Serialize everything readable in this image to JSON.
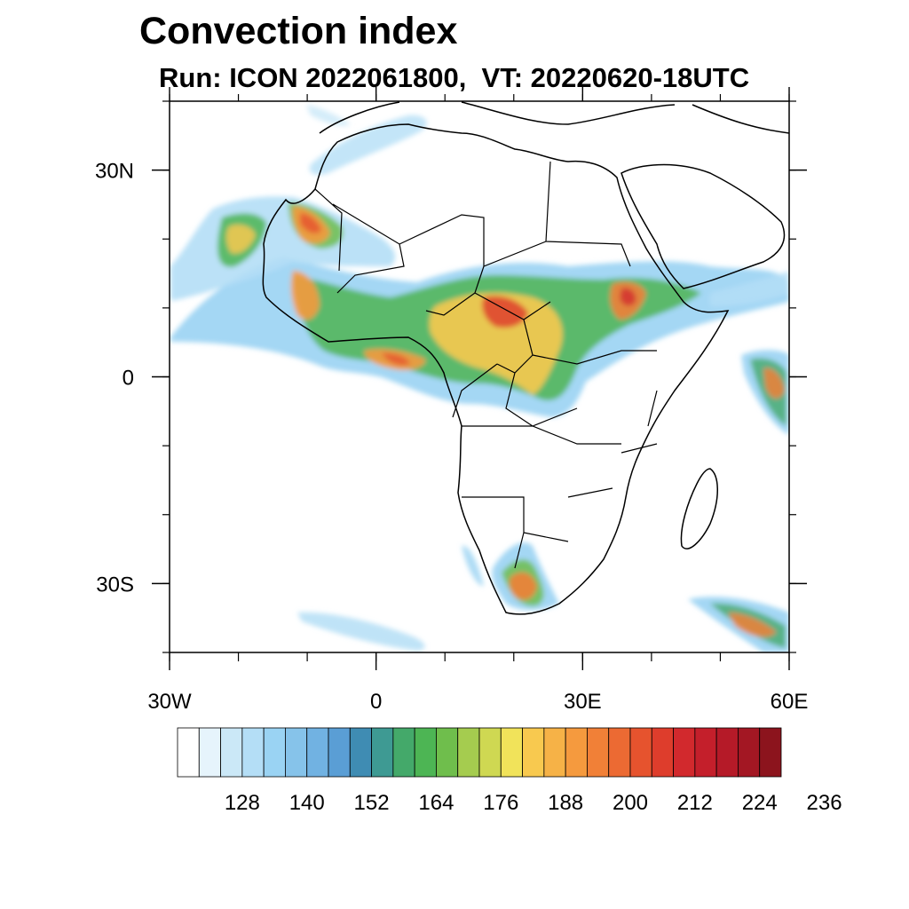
{
  "title": "Convection index",
  "subtitle": "Run: ICON 2022061800,  VT: 20220620-18UTC",
  "map": {
    "projection": "cylindrical-equidistant",
    "lon_range": [
      -30,
      60
    ],
    "lat_range": [
      -40,
      40
    ],
    "lon_ticks": [
      {
        "value": -30,
        "label": "30W"
      },
      {
        "value": 0,
        "label": "0"
      },
      {
        "value": 30,
        "label": "30E"
      },
      {
        "value": 60,
        "label": "60E"
      }
    ],
    "lat_ticks": [
      {
        "value": 30,
        "label": "30N"
      },
      {
        "value": 0,
        "label": "0"
      },
      {
        "value": -30,
        "label": "30S"
      }
    ]
  },
  "colorbar": {
    "labels": [
      "128",
      "140",
      "152",
      "164",
      "176",
      "188",
      "200",
      "212",
      "224",
      "236"
    ],
    "colors": [
      "#ffffff",
      "#e6f4fc",
      "#cbe8f7",
      "#b4def6",
      "#9ad3f3",
      "#86c3ea",
      "#71b2e2",
      "#5a9ed5",
      "#3f8cb3",
      "#3e9a93",
      "#44a96a",
      "#4db554",
      "#6fbe4c",
      "#a5cc4f",
      "#cfd852",
      "#f1e35a",
      "#f8c94f",
      "#f6b247",
      "#f59a3e",
      "#f18037",
      "#ec6a33",
      "#e6532e",
      "#de3d2c",
      "#d2292d",
      "#c41f2b",
      "#b51a28",
      "#a31723",
      "#8c141d"
    ]
  }
}
